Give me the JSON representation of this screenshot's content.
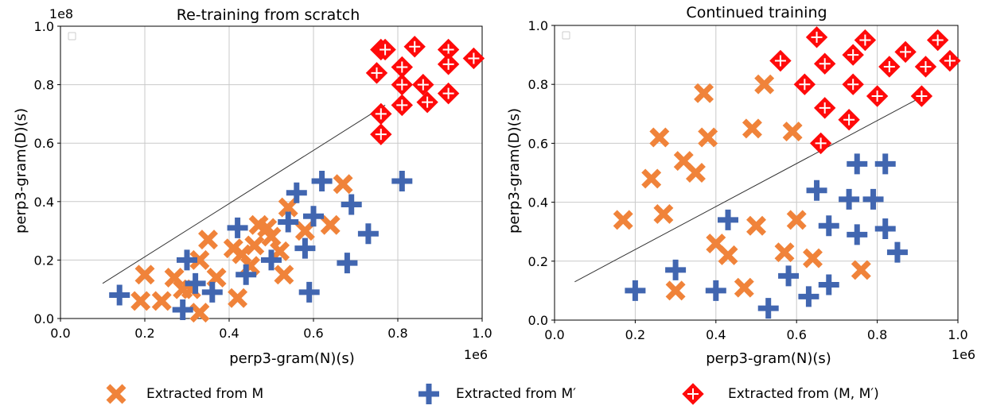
{
  "colors": {
    "orange": "#F0833A",
    "blue": "#4166B0",
    "red": "#FF0A0A",
    "grid": "#C9C9C9",
    "ref_line": "#333333"
  },
  "legend": [
    {
      "key": "M",
      "label": "Extracted from M",
      "marker": "x-cross",
      "color": "#F0833A"
    },
    {
      "key": "Mp",
      "label": "Extracted from M′",
      "marker": "plus",
      "color": "#4166B0"
    },
    {
      "key": "MMp",
      "label": "Extracted from (M, M′)",
      "marker": "plus-in-diamond",
      "color": "#FF0A0A"
    }
  ],
  "chart_data": [
    {
      "type": "scatter",
      "title": "Re-training from scratch",
      "xlabel": "perp3-gram(N)(s)",
      "ylabel": "perp3-gram(D)(s)",
      "x_offset_text": "1e6",
      "y_offset_text": "1e8",
      "xlim": [
        0,
        1
      ],
      "ylim": [
        0,
        1
      ],
      "xticks": [
        "0.0",
        "0.2",
        "0.4",
        "0.6",
        "0.8",
        "1.0"
      ],
      "yticks": [
        "0.0",
        "0.2",
        "0.4",
        "0.6",
        "0.8",
        "1.0"
      ],
      "grid": true,
      "reference_line": {
        "from": [
          0.1,
          0.12
        ],
        "to": [
          0.77,
          0.73
        ]
      },
      "series": [
        {
          "legend_key": "M",
          "marker": "x-cross",
          "color": "#F0833A",
          "points": [
            [
              0.2,
              0.15
            ],
            [
              0.19,
              0.06
            ],
            [
              0.24,
              0.06
            ],
            [
              0.27,
              0.14
            ],
            [
              0.29,
              0.1
            ],
            [
              0.31,
              0.1
            ],
            [
              0.33,
              0.2
            ],
            [
              0.33,
              0.02
            ],
            [
              0.35,
              0.27
            ],
            [
              0.37,
              0.14
            ],
            [
              0.41,
              0.24
            ],
            [
              0.42,
              0.07
            ],
            [
              0.43,
              0.22
            ],
            [
              0.45,
              0.18
            ],
            [
              0.46,
              0.25
            ],
            [
              0.47,
              0.32
            ],
            [
              0.49,
              0.31
            ],
            [
              0.5,
              0.28
            ],
            [
              0.52,
              0.23
            ],
            [
              0.53,
              0.15
            ],
            [
              0.54,
              0.38
            ],
            [
              0.58,
              0.3
            ],
            [
              0.64,
              0.32
            ],
            [
              0.67,
              0.46
            ]
          ]
        },
        {
          "legend_key": "Mp",
          "marker": "plus",
          "color": "#4166B0",
          "points": [
            [
              0.14,
              0.08
            ],
            [
              0.29,
              0.03
            ],
            [
              0.3,
              0.2
            ],
            [
              0.32,
              0.12
            ],
            [
              0.36,
              0.09
            ],
            [
              0.42,
              0.31
            ],
            [
              0.44,
              0.15
            ],
            [
              0.5,
              0.2
            ],
            [
              0.54,
              0.33
            ],
            [
              0.56,
              0.43
            ],
            [
              0.58,
              0.24
            ],
            [
              0.59,
              0.09
            ],
            [
              0.6,
              0.35
            ],
            [
              0.62,
              0.47
            ],
            [
              0.68,
              0.19
            ],
            [
              0.69,
              0.39
            ],
            [
              0.73,
              0.29
            ],
            [
              0.81,
              0.47
            ]
          ]
        },
        {
          "legend_key": "MMp",
          "marker": "plus-in-diamond",
          "color": "#FF0A0A",
          "points": [
            [
              0.76,
              0.92
            ],
            [
              0.77,
              0.92
            ],
            [
              0.75,
              0.84
            ],
            [
              0.76,
              0.7
            ],
            [
              0.76,
              0.63
            ],
            [
              0.81,
              0.86
            ],
            [
              0.81,
              0.8
            ],
            [
              0.81,
              0.73
            ],
            [
              0.84,
              0.93
            ],
            [
              0.86,
              0.8
            ],
            [
              0.87,
              0.74
            ],
            [
              0.92,
              0.92
            ],
            [
              0.92,
              0.87
            ],
            [
              0.92,
              0.77
            ],
            [
              0.98,
              0.89
            ]
          ]
        }
      ]
    },
    {
      "type": "scatter",
      "title": "Continued training",
      "xlabel": "perp3-gram(N)(s)",
      "ylabel": "perp3-gram(D)(s)",
      "x_offset_text": "1e6",
      "y_offset_text": "",
      "xlim": [
        0,
        1
      ],
      "ylim": [
        0,
        1
      ],
      "xticks": [
        "0.0",
        "0.2",
        "0.4",
        "0.6",
        "0.8",
        "1.0"
      ],
      "yticks": [
        "0.0",
        "0.2",
        "0.4",
        "0.6",
        "0.8",
        "1.0"
      ],
      "grid": true,
      "reference_line": {
        "from": [
          0.05,
          0.13
        ],
        "to": [
          0.9,
          0.75
        ]
      },
      "series": [
        {
          "legend_key": "M",
          "marker": "x-cross",
          "color": "#F0833A",
          "points": [
            [
              0.17,
              0.34
            ],
            [
              0.24,
              0.48
            ],
            [
              0.26,
              0.62
            ],
            [
              0.27,
              0.36
            ],
            [
              0.3,
              0.1
            ],
            [
              0.32,
              0.54
            ],
            [
              0.35,
              0.5
            ],
            [
              0.37,
              0.77
            ],
            [
              0.38,
              0.62
            ],
            [
              0.4,
              0.26
            ],
            [
              0.43,
              0.22
            ],
            [
              0.47,
              0.11
            ],
            [
              0.5,
              0.32
            ],
            [
              0.49,
              0.65
            ],
            [
              0.52,
              0.8
            ],
            [
              0.57,
              0.23
            ],
            [
              0.59,
              0.64
            ],
            [
              0.6,
              0.34
            ],
            [
              0.64,
              0.21
            ],
            [
              0.76,
              0.17
            ]
          ]
        },
        {
          "legend_key": "Mp",
          "marker": "plus",
          "color": "#4166B0",
          "points": [
            [
              0.2,
              0.1
            ],
            [
              0.3,
              0.17
            ],
            [
              0.4,
              0.1
            ],
            [
              0.43,
              0.34
            ],
            [
              0.53,
              0.04
            ],
            [
              0.58,
              0.15
            ],
            [
              0.63,
              0.08
            ],
            [
              0.65,
              0.44
            ],
            [
              0.68,
              0.32
            ],
            [
              0.68,
              0.12
            ],
            [
              0.73,
              0.41
            ],
            [
              0.75,
              0.53
            ],
            [
              0.75,
              0.29
            ],
            [
              0.79,
              0.41
            ],
            [
              0.82,
              0.53
            ],
            [
              0.82,
              0.31
            ],
            [
              0.85,
              0.23
            ]
          ]
        },
        {
          "legend_key": "MMp",
          "marker": "plus-in-diamond",
          "color": "#FF0A0A",
          "points": [
            [
              0.56,
              0.88
            ],
            [
              0.62,
              0.8
            ],
            [
              0.65,
              0.96
            ],
            [
              0.66,
              0.6
            ],
            [
              0.67,
              0.87
            ],
            [
              0.67,
              0.72
            ],
            [
              0.73,
              0.68
            ],
            [
              0.74,
              0.9
            ],
            [
              0.74,
              0.8
            ],
            [
              0.77,
              0.95
            ],
            [
              0.8,
              0.76
            ],
            [
              0.83,
              0.86
            ],
            [
              0.87,
              0.91
            ],
            [
              0.91,
              0.76
            ],
            [
              0.92,
              0.86
            ],
            [
              0.95,
              0.95
            ],
            [
              0.98,
              0.88
            ]
          ]
        }
      ]
    }
  ]
}
